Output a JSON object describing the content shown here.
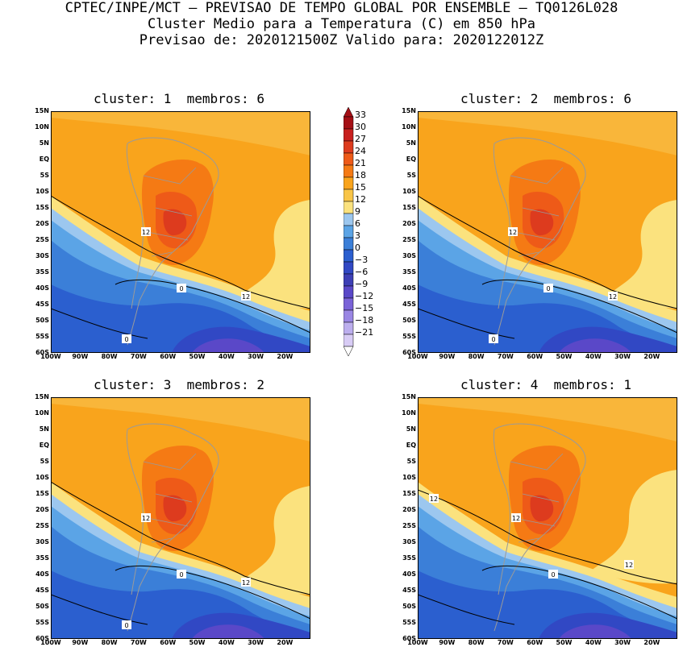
{
  "header": {
    "line1": "CPTEC/INPE/MCT — PREVISAO DE TEMPO GLOBAL POR ENSEMBLE — TQ0126L028",
    "line2": "Cluster Medio para a Temperatura (C) em 850 hPa",
    "line3": "Previsao de: 2020121500Z   Valido para: 2020122012Z"
  },
  "panels": [
    {
      "title": "cluster: 1  membros: 6"
    },
    {
      "title": "cluster: 2  membros: 6"
    },
    {
      "title": "cluster: 3  membros: 2"
    },
    {
      "title": "cluster: 4  membros: 1"
    }
  ],
  "y_ticks": [
    "15N",
    "10N",
    "5N",
    "EQ",
    "5S",
    "10S",
    "15S",
    "20S",
    "25S",
    "30S",
    "35S",
    "40S",
    "45S",
    "50S",
    "55S",
    "60S"
  ],
  "x_ticks": [
    "100W",
    "90W",
    "80W",
    "70W",
    "60W",
    "50W",
    "40W",
    "30W",
    "20W"
  ],
  "colorbar": {
    "levels": [
      "33",
      "30",
      "27",
      "24",
      "21",
      "18",
      "15",
      "12",
      "9",
      "6",
      "3",
      "0",
      "−3",
      "−6",
      "−9",
      "−12",
      "−15",
      "−18",
      "−21"
    ],
    "colors": [
      "#a50f15",
      "#c8201e",
      "#dd3b1e",
      "#ee5a18",
      "#f57a14",
      "#f9a41c",
      "#f9c547",
      "#fbe27e",
      "#9cc7ef",
      "#5ba4e6",
      "#3b7fd8",
      "#2b5fcf",
      "#3148c4",
      "#3d3fb5",
      "#5a48c8",
      "#7a63d8",
      "#9a86e4",
      "#bcaeee",
      "#d8ccf5"
    ]
  },
  "contour_labels": {
    "p1": [
      "12",
      "0",
      "12",
      "0"
    ],
    "p2": [
      "12",
      "0",
      "12",
      "0"
    ],
    "p3": [
      "12",
      "0",
      "12",
      "0"
    ],
    "p4": [
      "12",
      "12",
      "0",
      "12"
    ]
  }
}
